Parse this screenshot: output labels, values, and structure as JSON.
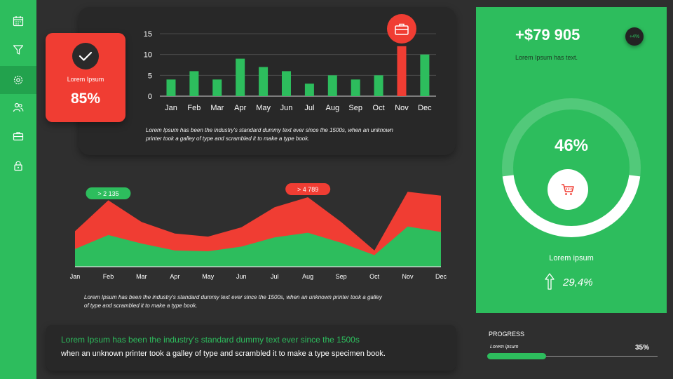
{
  "sidebar": {
    "accent": "#2dbd5d",
    "active_index": 2,
    "items": [
      {
        "icon": "calendar-icon"
      },
      {
        "icon": "filter-icon"
      },
      {
        "icon": "settings-icon"
      },
      {
        "icon": "users-icon"
      },
      {
        "icon": "briefcase-icon"
      },
      {
        "icon": "lock-icon"
      }
    ]
  },
  "kpi_card": {
    "label": "Lorem Ipsum",
    "value": "85%",
    "icon": "check-icon",
    "color": "#f03d33"
  },
  "bar_chart": {
    "description_line1": "Lorem Ipsum has been the industry's standard dummy text ever since the 1500s, when an unknown",
    "description_line2": "printer took a galley of type and scrambled it to make a type book.",
    "highlight_icon": "briefcase-icon"
  },
  "area_chart": {
    "description_line1": "Lorem Ipsum has been the industry's standard dummy text ever since the 1500s, when an unknown  printer took a galley",
    "description_line2": "of type and scrambled it to make a type book."
  },
  "right_panel": {
    "amount": "+$79 905",
    "text": "Lorem Ipsum has text.",
    "badge": "+4%",
    "percent": "46%",
    "percent_value": 46,
    "caption": "Lorem ipsum",
    "growth": "29,4%",
    "cart_icon": "cart-icon",
    "arrow_icon": "arrow-up-icon"
  },
  "bottom": {
    "headline": "Lorem Ipsum has been the industry's standard dummy text ever  since the 1500s",
    "body": "when an unknown printer took a galley of type and scrambled it to make a type specimen book."
  },
  "progress": {
    "title": "PROGRESS",
    "label": "Lorem ipsum",
    "value": "35%",
    "fraction": 0.35
  },
  "chart_data": [
    {
      "type": "bar",
      "categories": [
        "Jan",
        "Feb",
        "Mar",
        "Apr",
        "May",
        "Jun",
        "Jul",
        "Aug",
        "Sep",
        "Oct",
        "Nov",
        "Dec"
      ],
      "values": [
        4,
        6,
        4,
        9,
        7,
        6,
        3,
        5,
        4,
        5,
        12,
        10
      ],
      "ylim": [
        0,
        15
      ],
      "yticks": [
        "0",
        "5",
        "10",
        "15"
      ],
      "highlight_category": "Nov",
      "colors": {
        "bar": "#2dbd5d",
        "highlight": "#f03d33"
      },
      "grid": true
    },
    {
      "type": "area",
      "categories": [
        "Jan",
        "Feb",
        "Mar",
        "Apr",
        "May",
        "Jun",
        "Jul",
        "Aug",
        "Sep",
        "Oct",
        "Nov",
        "Dec"
      ],
      "ylim": [
        0,
        10
      ],
      "series": [
        {
          "color": "#f03d33",
          "values": [
            4.6,
            8.6,
            5.8,
            4.3,
            3.9,
            5.1,
            7.7,
            9.0,
            5.8,
            2.1,
            9.7,
            9.2
          ]
        },
        {
          "color": "#2dbd5d",
          "values": [
            2.3,
            4.1,
            3.0,
            2.1,
            2.0,
            2.6,
            3.8,
            4.4,
            3.1,
            1.5,
            5.2,
            4.5
          ]
        }
      ],
      "annotations": [
        {
          "text": "> 2 135",
          "category": "Feb",
          "color": "#2dbd5d"
        },
        {
          "text": "> 4 789",
          "category": "Aug",
          "color": "#f03d33"
        }
      ]
    }
  ]
}
